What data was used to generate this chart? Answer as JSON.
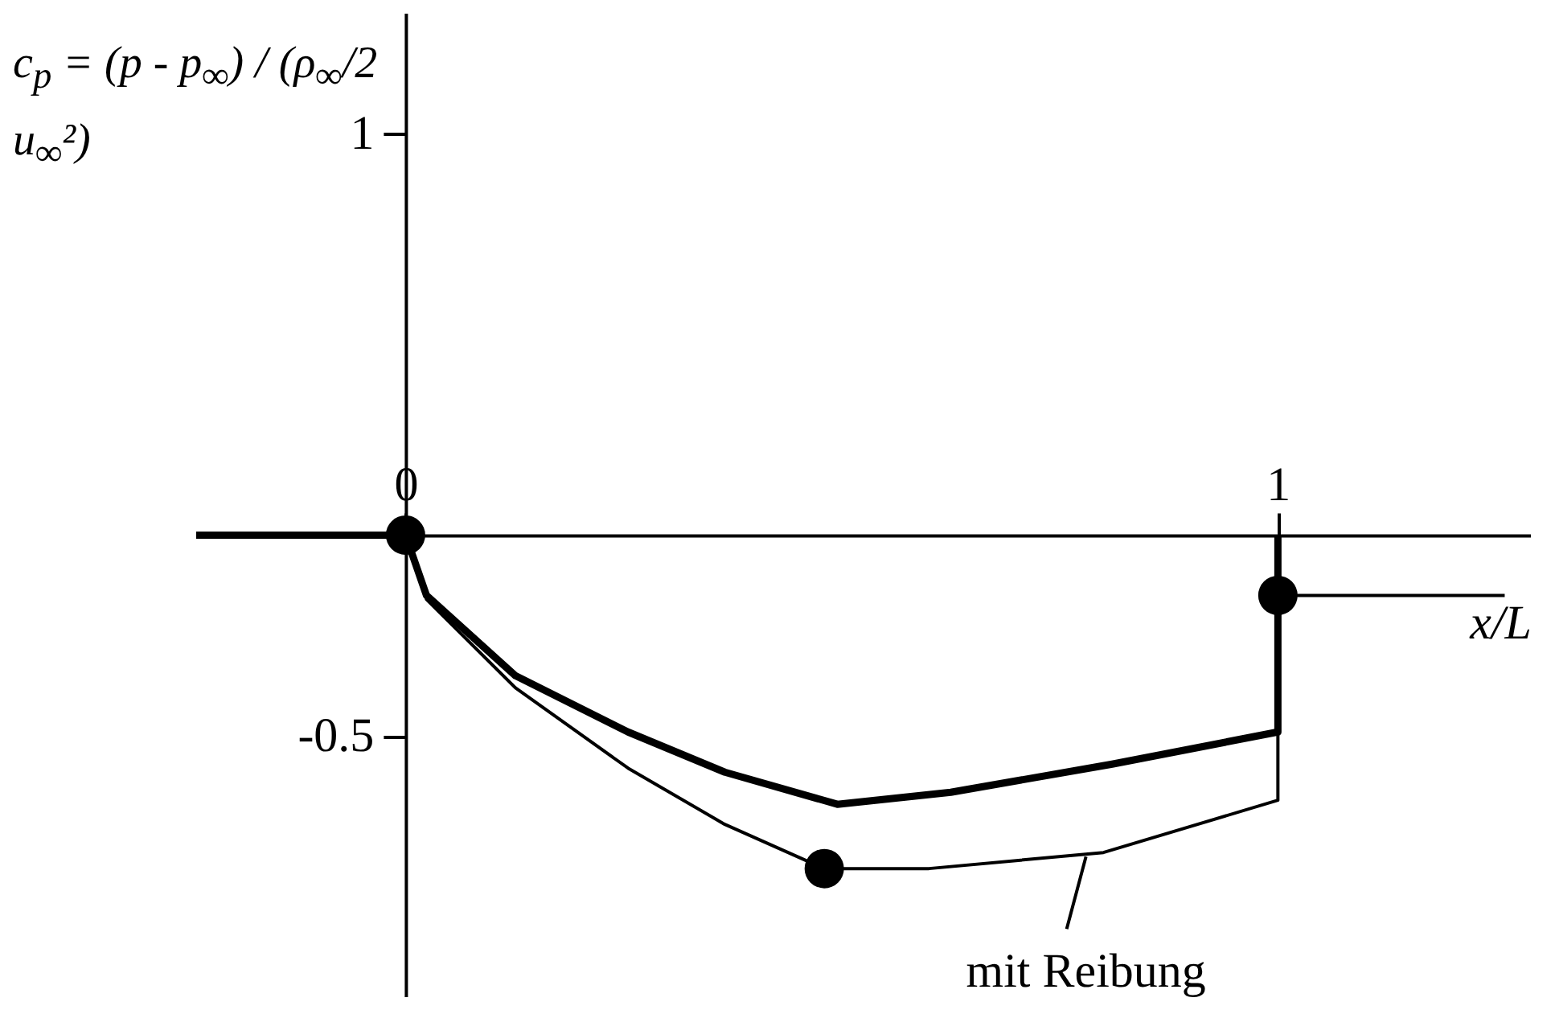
{
  "chart_data": {
    "type": "line",
    "ylabel": "c$_{p}$ = (p - p$_{∞}$) / (ρ$_{∞}$/2 u$_{∞}$²)",
    "xlabel": "x/L",
    "xlim": [
      -0.24,
      1.29
    ],
    "ylim": [
      -1.15,
      1.3
    ],
    "xticks": [
      0,
      1
    ],
    "yticks": [
      -0.5,
      {
        "value": 0,
        "label": null
      },
      1
    ],
    "grid": false,
    "series": [
      {
        "color": "#000000",
        "x": [
          -0.24,
          0,
          0.024,
          0.126,
          0.255,
          0.366,
          0.495,
          0.625,
          0.81,
          1.0,
          1.0
        ],
        "values": [
          0,
          0,
          -0.15,
          -0.35,
          -0.49,
          -0.59,
          -0.67,
          -0.64,
          -0.57,
          -0.49,
          0
        ]
      },
      {
        "color": "#000000",
        "x": [
          0,
          0.024,
          0.126,
          0.255,
          0.366,
          0.48,
          0.6,
          0.8,
          1.0,
          1.0,
          null,
          1.0,
          1.26
        ],
        "values": [
          0,
          -0.16,
          -0.38,
          -0.58,
          -0.72,
          -0.83,
          -0.83,
          -0.79,
          -0.66,
          0,
          null,
          -0.15,
          -0.15
        ]
      },
      {
        "type": "scatter",
        "color": "#000000",
        "marker": "circle",
        "x": [
          0,
          0.48,
          1.0
        ],
        "values": [
          0,
          -0.83,
          -0.15
        ]
      }
    ],
    "annotations": [
      {
        "text": "mit Reibung",
        "x": 0.78,
        "y": -0.8
      }
    ]
  }
}
